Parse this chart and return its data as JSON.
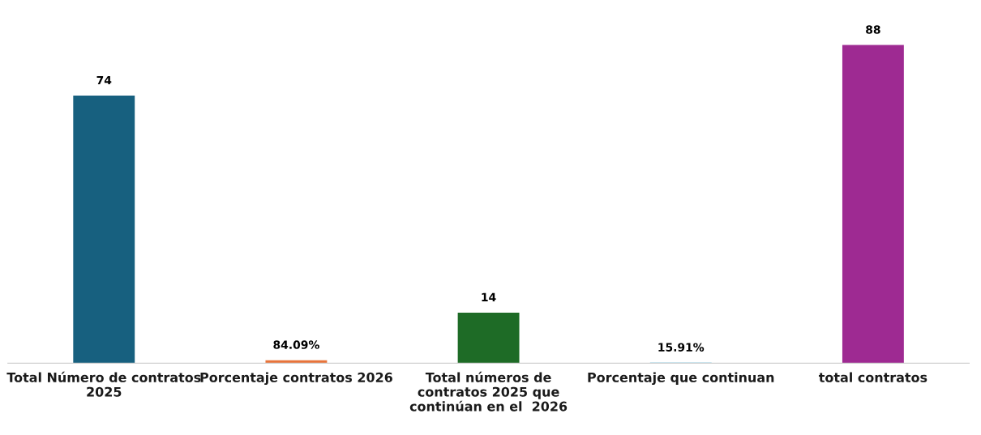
{
  "chart_data": {
    "type": "bar",
    "categories": [
      "Total Número de contratos\n2025",
      "Porcentaje contratos 2026",
      "Total números de\ncontratos 2025 que\ncontinúan en el  2026",
      "Porcentaje que continuan",
      "total contratos"
    ],
    "values": [
      74,
      0.8409,
      14,
      0.1591,
      88
    ],
    "colors": [
      "#17607f",
      "#e8743b",
      "#1e6b26",
      "#2aa5d6",
      "#9e2a92"
    ],
    "value_labels": [
      "74",
      "84.09%",
      "14",
      "15.91%",
      "88"
    ],
    "grid": false,
    "legend": false
  }
}
